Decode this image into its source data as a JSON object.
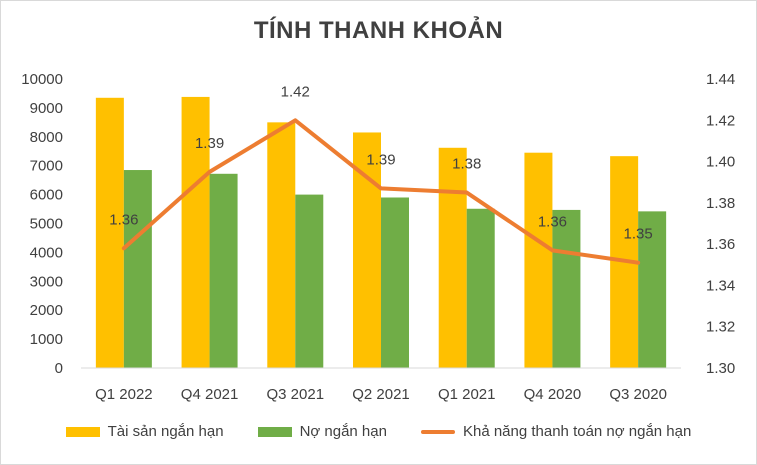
{
  "chart_data": {
    "type": "bar",
    "title": "TÍNH THANH KHOẢN",
    "categories": [
      "Q1 2022",
      "Q4 2021",
      "Q3 2021",
      "Q2 2021",
      "Q1 2021",
      "Q4 2020",
      "Q3 2020"
    ],
    "series": [
      {
        "name": "Tài sản ngắn hạn",
        "type": "bar",
        "axis": "left",
        "color": "#FFC000",
        "values": [
          9350,
          9380,
          8500,
          8150,
          7620,
          7450,
          7330
        ]
      },
      {
        "name": "Nợ ngắn hạn",
        "type": "bar",
        "axis": "left",
        "color": "#70AD47",
        "values": [
          6850,
          6720,
          6000,
          5900,
          5510,
          5470,
          5420
        ]
      },
      {
        "name": "Khả năng thanh toán nợ ngắn hạn",
        "type": "line",
        "axis": "right",
        "color": "#ED7D31",
        "values": [
          1.358,
          1.395,
          1.42,
          1.387,
          1.385,
          1.357,
          1.351
        ],
        "labels": [
          "1.36",
          "1.39",
          "1.42",
          "1.39",
          "1.38",
          "1.36",
          "1.35"
        ]
      }
    ],
    "y_left": {
      "min": 0,
      "max": 10000,
      "step": 1000,
      "ticks": [
        "0",
        "1000",
        "2000",
        "3000",
        "4000",
        "5000",
        "6000",
        "7000",
        "8000",
        "9000",
        "10000"
      ]
    },
    "y_right": {
      "min": 1.3,
      "max": 1.44,
      "step": 0.02,
      "ticks": [
        "1.30",
        "1.32",
        "1.34",
        "1.36",
        "1.38",
        "1.40",
        "1.42",
        "1.44"
      ]
    },
    "grid": false,
    "legend_position": "bottom"
  }
}
